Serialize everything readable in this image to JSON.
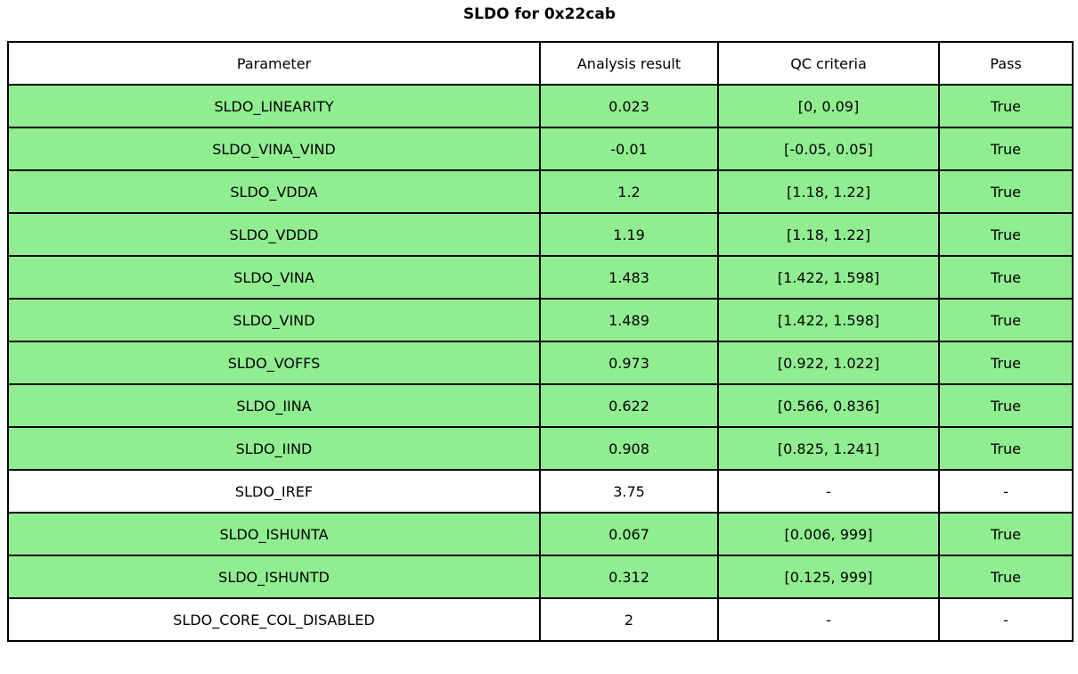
{
  "title": "SLDO for 0x22cab",
  "colors": {
    "pass_green": "#90EE90",
    "neutral_white": "#ffffff",
    "border": "#000000"
  },
  "table": {
    "headers": [
      "Parameter",
      "Analysis result",
      "QC criteria",
      "Pass"
    ],
    "rows": [
      {
        "parameter": "SLDO_LINEARITY",
        "analysis_result": "0.023",
        "qc_criteria": "[0, 0.09]",
        "pass": "True",
        "highlighted": true
      },
      {
        "parameter": "SLDO_VINA_VIND",
        "analysis_result": "-0.01",
        "qc_criteria": "[-0.05, 0.05]",
        "pass": "True",
        "highlighted": true
      },
      {
        "parameter": "SLDO_VDDA",
        "analysis_result": "1.2",
        "qc_criteria": "[1.18, 1.22]",
        "pass": "True",
        "highlighted": true
      },
      {
        "parameter": "SLDO_VDDD",
        "analysis_result": "1.19",
        "qc_criteria": "[1.18, 1.22]",
        "pass": "True",
        "highlighted": true
      },
      {
        "parameter": "SLDO_VINA",
        "analysis_result": "1.483",
        "qc_criteria": "[1.422, 1.598]",
        "pass": "True",
        "highlighted": true
      },
      {
        "parameter": "SLDO_VIND",
        "analysis_result": "1.489",
        "qc_criteria": "[1.422, 1.598]",
        "pass": "True",
        "highlighted": true
      },
      {
        "parameter": "SLDO_VOFFS",
        "analysis_result": "0.973",
        "qc_criteria": "[0.922, 1.022]",
        "pass": "True",
        "highlighted": true
      },
      {
        "parameter": "SLDO_IINA",
        "analysis_result": "0.622",
        "qc_criteria": "[0.566, 0.836]",
        "pass": "True",
        "highlighted": true
      },
      {
        "parameter": "SLDO_IIND",
        "analysis_result": "0.908",
        "qc_criteria": "[0.825, 1.241]",
        "pass": "True",
        "highlighted": true
      },
      {
        "parameter": "SLDO_IREF",
        "analysis_result": "3.75",
        "qc_criteria": "-",
        "pass": "-",
        "highlighted": false
      },
      {
        "parameter": "SLDO_ISHUNTA",
        "analysis_result": "0.067",
        "qc_criteria": "[0.006, 999]",
        "pass": "True",
        "highlighted": true
      },
      {
        "parameter": "SLDO_ISHUNTD",
        "analysis_result": "0.312",
        "qc_criteria": "[0.125, 999]",
        "pass": "True",
        "highlighted": true
      },
      {
        "parameter": "SLDO_CORE_COL_DISABLED",
        "analysis_result": "2",
        "qc_criteria": "-",
        "pass": "-",
        "highlighted": false
      }
    ]
  }
}
